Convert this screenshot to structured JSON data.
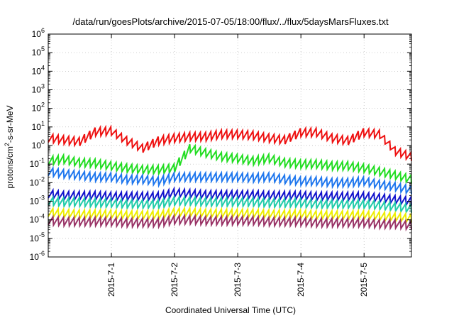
{
  "chart_data": {
    "type": "line",
    "title": "/data/run/goesPlots/archive/2015-07-05/18:00/flux/../flux/5daysMarsFluxes.txt",
    "xlabel": "Coordinated Universal Time (UTC)",
    "ylabel": "protons/cm²-s-sr-MeV",
    "ylabel_parts": {
      "pre": "protons/cm",
      "sup": "2",
      "post": "-s-sr-MeV"
    },
    "y_scale": "log",
    "ylim": [
      1e-06,
      1000000.0
    ],
    "y_ticks": [
      {
        "base": "10",
        "exp": "-6",
        "value": 1e-06
      },
      {
        "base": "10",
        "exp": "-5",
        "value": 1e-05
      },
      {
        "base": "10",
        "exp": "-4",
        "value": 0.0001
      },
      {
        "base": "10",
        "exp": "-3",
        "value": 0.001
      },
      {
        "base": "10",
        "exp": "-2",
        "value": 0.01
      },
      {
        "base": "10",
        "exp": "-1",
        "value": 0.1
      },
      {
        "base": "10",
        "exp": "0",
        "value": 1
      },
      {
        "base": "10",
        "exp": "1",
        "value": 10
      },
      {
        "base": "10",
        "exp": "2",
        "value": 100
      },
      {
        "base": "10",
        "exp": "3",
        "value": 1000
      },
      {
        "base": "10",
        "exp": "4",
        "value": 10000
      },
      {
        "base": "10",
        "exp": "5",
        "value": 100000
      },
      {
        "base": "10",
        "exp": "6",
        "value": 1000000
      }
    ],
    "x_axis": "date (UTC)",
    "xlim": [
      "2015-06-30 00:00",
      "2015-07-05 18:00"
    ],
    "x_ticks": [
      "2015-7-1",
      "2015-7-2",
      "2015-7-3",
      "2015-7-4",
      "2015-7-5"
    ],
    "grid": true,
    "legend": "none",
    "x": [
      "2015-06-30 00:00",
      "2015-06-30 06:00",
      "2015-06-30 12:00",
      "2015-06-30 18:00",
      "2015-07-01 00:00",
      "2015-07-01 06:00",
      "2015-07-01 12:00",
      "2015-07-01 18:00",
      "2015-07-02 00:00",
      "2015-07-02 06:00",
      "2015-07-02 12:00",
      "2015-07-02 18:00",
      "2015-07-03 00:00",
      "2015-07-03 06:00",
      "2015-07-03 12:00",
      "2015-07-03 18:00",
      "2015-07-04 00:00",
      "2015-07-04 06:00",
      "2015-07-04 12:00",
      "2015-07-04 18:00",
      "2015-07-05 00:00",
      "2015-07-05 06:00",
      "2015-07-05 12:00",
      "2015-07-05 18:00"
    ],
    "series": [
      {
        "color": "#ee1111",
        "values": [
          2.5,
          2.0,
          1.6,
          5.5,
          6.0,
          1.8,
          0.7,
          1.8,
          2.5,
          3.0,
          3.0,
          4.0,
          4.0,
          3.5,
          2.5,
          2.0,
          5.0,
          5.0,
          2.5,
          1.8,
          5.0,
          4.0,
          0.5,
          0.25
        ]
      },
      {
        "color": "#22dd22",
        "values": [
          0.15,
          0.18,
          0.12,
          0.11,
          0.08,
          0.06,
          0.05,
          0.05,
          0.06,
          0.7,
          0.4,
          0.25,
          0.2,
          0.15,
          0.2,
          0.12,
          0.1,
          0.1,
          0.08,
          0.08,
          0.06,
          0.04,
          0.025,
          0.015
        ]
      },
      {
        "color": "#1f77ee",
        "values": [
          0.04,
          0.03,
          0.025,
          0.02,
          0.02,
          0.015,
          0.015,
          0.012,
          0.02,
          0.02,
          0.02,
          0.02,
          0.02,
          0.018,
          0.02,
          0.015,
          0.012,
          0.012,
          0.01,
          0.01,
          0.012,
          0.008,
          0.006,
          0.004
        ]
      },
      {
        "color": "#1111cc",
        "values": [
          0.0025,
          0.002,
          0.002,
          0.002,
          0.0018,
          0.0018,
          0.0018,
          0.0018,
          0.0028,
          0.0025,
          0.0022,
          0.0022,
          0.0022,
          0.0022,
          0.002,
          0.002,
          0.002,
          0.0018,
          0.0018,
          0.0018,
          0.0018,
          0.0015,
          0.0012,
          0.001
        ]
      },
      {
        "color": "#22ccaa",
        "values": [
          0.001,
          0.0009,
          0.0009,
          0.0008,
          0.0008,
          0.0007,
          0.0007,
          0.0007,
          0.001,
          0.001,
          0.0009,
          0.0009,
          0.0009,
          0.0009,
          0.0008,
          0.0008,
          0.0008,
          0.0007,
          0.0007,
          0.0007,
          0.0007,
          0.0006,
          0.0005,
          0.0004
        ]
      },
      {
        "color": "#eeee00",
        "values": [
          0.00025,
          0.00022,
          0.0002,
          0.0002,
          0.0002,
          0.00018,
          0.00018,
          0.00018,
          0.00025,
          0.00025,
          0.00022,
          0.00022,
          0.00022,
          0.00022,
          0.0002,
          0.0002,
          0.0002,
          0.00018,
          0.00018,
          0.00018,
          0.00018,
          0.00016,
          0.00014,
          0.00012
        ]
      },
      {
        "color": "#993366",
        "values": [
          9e-05,
          8e-05,
          8e-05,
          8e-05,
          8e-05,
          7e-05,
          7e-05,
          7e-05,
          0.0001,
          0.0001,
          9e-05,
          9e-05,
          9e-05,
          9e-05,
          8e-05,
          8e-05,
          8e-05,
          7e-05,
          7e-05,
          7e-05,
          7e-05,
          6e-05,
          6e-05,
          5e-05
        ]
      }
    ]
  }
}
